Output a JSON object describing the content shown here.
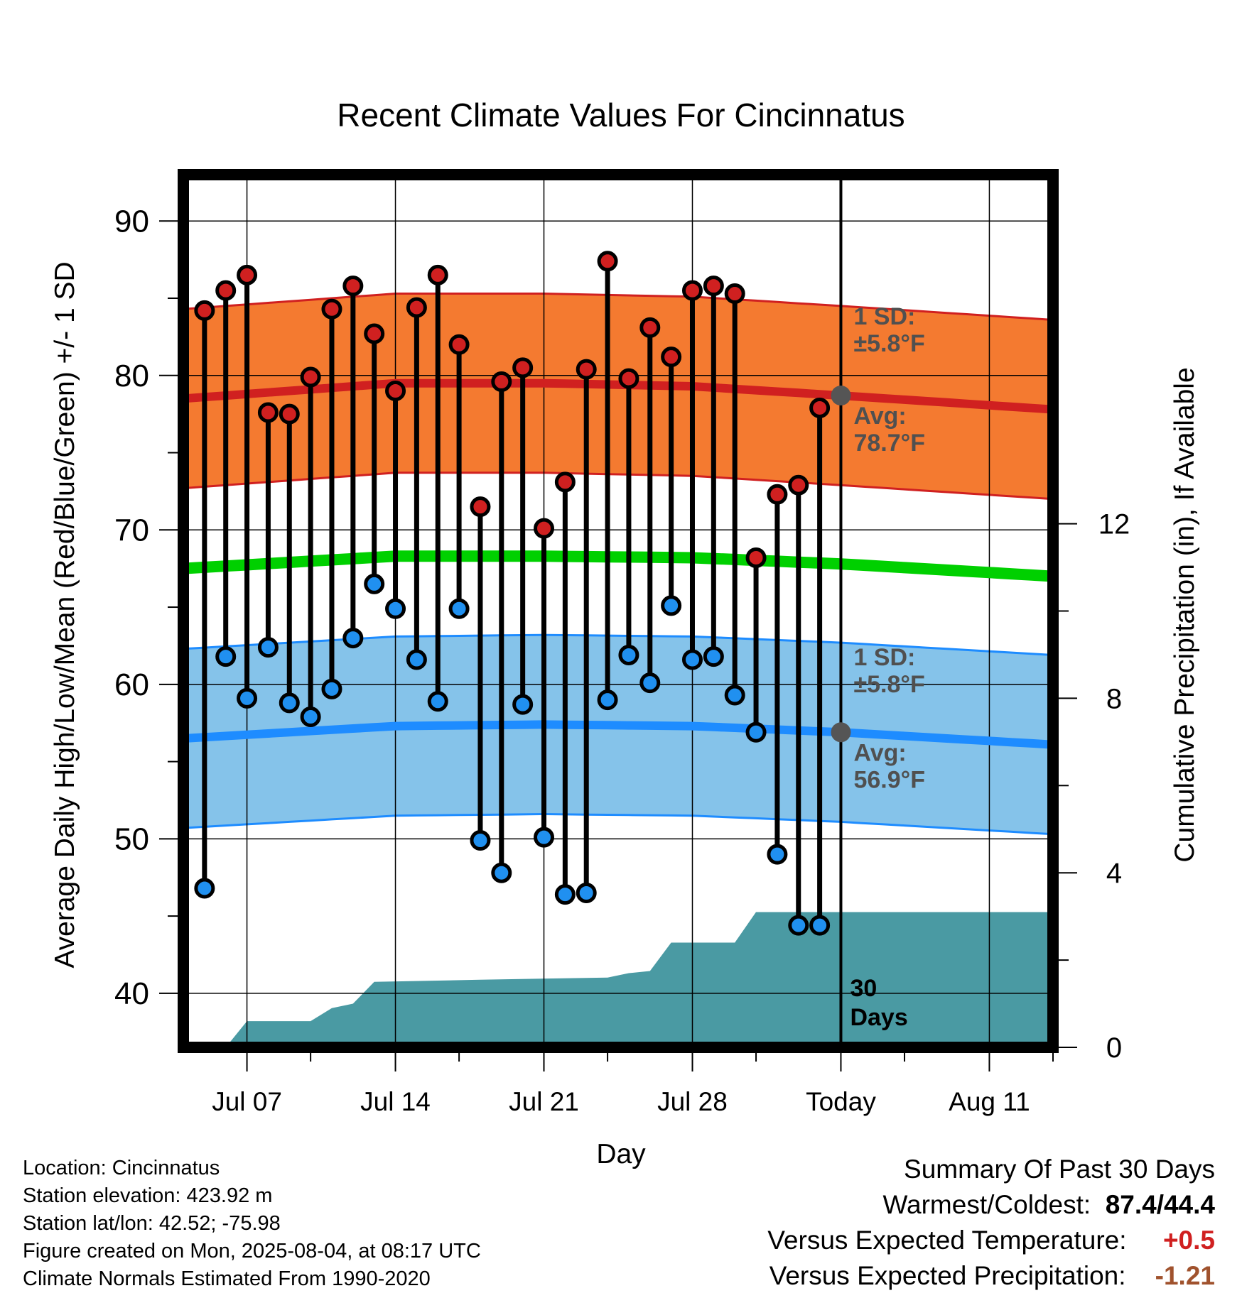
{
  "chart_data": {
    "type": "line",
    "title": "Recent Climate Values For Cincinnatus",
    "xlabel": "Day",
    "ylabel": "Average Daily High/Low/Mean (Red/Blue/Green) +/- 1 SD",
    "y2label": "Cumulative Precipitation (in), If Available",
    "ylim": [
      36.5,
      93
    ],
    "y_ticks": [
      "40",
      "50",
      "60",
      "70",
      "80",
      "90"
    ],
    "y2lim": [
      0,
      20
    ],
    "y2_ticks": [
      "0",
      "4",
      "8",
      "12"
    ],
    "xlim": [
      "2025-07-04",
      "2025-08-14"
    ],
    "x_ticks": [
      {
        "date": "2025-07-07",
        "label": "Jul 07"
      },
      {
        "date": "2025-07-14",
        "label": "Jul 14"
      },
      {
        "date": "2025-07-21",
        "label": "Jul 21"
      },
      {
        "date": "2025-07-28",
        "label": "Jul 28"
      },
      {
        "date": "2025-08-04",
        "label": "Today"
      },
      {
        "date": "2025-08-11",
        "label": "Aug 11"
      }
    ],
    "grid": true,
    "today": "2025-08-04",
    "series": [
      {
        "name": "High",
        "color": "#d02020",
        "dates": [
          "2025-07-05",
          "2025-07-06",
          "2025-07-07",
          "2025-07-08",
          "2025-07-09",
          "2025-07-10",
          "2025-07-11",
          "2025-07-12",
          "2025-07-13",
          "2025-07-14",
          "2025-07-15",
          "2025-07-16",
          "2025-07-17",
          "2025-07-18",
          "2025-07-19",
          "2025-07-20",
          "2025-07-21",
          "2025-07-22",
          "2025-07-23",
          "2025-07-24",
          "2025-07-25",
          "2025-07-26",
          "2025-07-27",
          "2025-07-28",
          "2025-07-29",
          "2025-07-30",
          "2025-07-31",
          "2025-08-01",
          "2025-08-02",
          "2025-08-03"
        ],
        "values": [
          84.2,
          85.5,
          86.5,
          77.6,
          77.5,
          79.9,
          84.3,
          85.8,
          82.7,
          79.0,
          84.4,
          86.5,
          82.0,
          71.5,
          79.6,
          80.5,
          70.1,
          73.1,
          80.4,
          87.4,
          79.8,
          83.1,
          81.2,
          85.5,
          85.8,
          85.3,
          68.2,
          72.3,
          72.9,
          77.9
        ]
      },
      {
        "name": "Low",
        "color": "#2090f0",
        "dates": [
          "2025-07-05",
          "2025-07-06",
          "2025-07-07",
          "2025-07-08",
          "2025-07-09",
          "2025-07-10",
          "2025-07-11",
          "2025-07-12",
          "2025-07-13",
          "2025-07-14",
          "2025-07-15",
          "2025-07-16",
          "2025-07-17",
          "2025-07-18",
          "2025-07-19",
          "2025-07-20",
          "2025-07-21",
          "2025-07-22",
          "2025-07-23",
          "2025-07-24",
          "2025-07-25",
          "2025-07-26",
          "2025-07-27",
          "2025-07-28",
          "2025-07-29",
          "2025-07-30",
          "2025-07-31",
          "2025-08-01",
          "2025-08-02",
          "2025-08-03"
        ],
        "values": [
          46.8,
          61.8,
          59.1,
          62.4,
          58.8,
          57.9,
          59.7,
          63.0,
          66.5,
          64.9,
          61.6,
          58.9,
          64.9,
          49.9,
          47.8,
          58.7,
          50.1,
          46.4,
          46.5,
          59.0,
          61.9,
          60.1,
          65.1,
          61.6,
          61.8,
          59.3,
          56.9,
          49.0,
          44.4,
          44.4
        ]
      },
      {
        "name": "Normal High",
        "color": "#d02020",
        "dates": [
          "2025-07-04",
          "2025-07-14",
          "2025-07-21",
          "2025-07-28",
          "2025-08-04",
          "2025-08-14"
        ],
        "values": [
          78.5,
          79.5,
          79.5,
          79.3,
          78.7,
          77.8
        ],
        "sd": 5.8
      },
      {
        "name": "Normal Low",
        "color": "#1e8cff",
        "dates": [
          "2025-07-04",
          "2025-07-14",
          "2025-07-21",
          "2025-07-28",
          "2025-08-04",
          "2025-08-14"
        ],
        "values": [
          56.5,
          57.3,
          57.4,
          57.3,
          56.9,
          56.1
        ],
        "sd": 5.8
      },
      {
        "name": "Normal Mean",
        "color": "#00d000",
        "dates": [
          "2025-07-04",
          "2025-07-14",
          "2025-07-21",
          "2025-07-28",
          "2025-08-04",
          "2025-08-14"
        ],
        "values": [
          67.5,
          68.3,
          68.3,
          68.2,
          67.8,
          67.0
        ]
      },
      {
        "name": "Cumulative Precipitation",
        "color": "#4a9aa3",
        "dates": [
          "2025-07-06",
          "2025-07-07",
          "2025-07-10",
          "2025-07-11",
          "2025-07-12",
          "2025-07-13",
          "2025-07-18",
          "2025-07-24",
          "2025-07-25",
          "2025-07-26",
          "2025-07-27",
          "2025-07-28",
          "2025-07-30",
          "2025-07-31",
          "2025-08-03",
          "2025-08-04",
          "2025-08-14"
        ],
        "values": [
          0,
          0.6,
          0.6,
          0.9,
          1.0,
          1.5,
          1.55,
          1.6,
          1.7,
          1.75,
          2.4,
          2.4,
          2.4,
          3.1,
          3.1,
          3.1,
          3.1
        ]
      }
    ],
    "annotations": {
      "high_sd": {
        "line1": "1 SD:",
        "line2": "±5.8°F"
      },
      "high_avg": {
        "line1": "Avg:",
        "line2": "78.7°F"
      },
      "low_sd": {
        "line1": "1 SD:",
        "line2": "±5.8°F"
      },
      "low_avg": {
        "line1": "Avg:",
        "line2": "56.9°F"
      },
      "days": {
        "line1": "30",
        "line2": "Days"
      }
    }
  },
  "footer": {
    "location": "Location: Cincinnatus",
    "elevation": "Station elevation: 423.92 m",
    "latlon": "Station lat/lon: 42.52; -75.98",
    "created": "Figure created on Mon, 2025-08-04, at 08:17 UTC",
    "normals": "Climate Normals Estimated From 1990-2020"
  },
  "summary": {
    "title": "Summary Of Past 30 Days",
    "warmest_label": "Warmest/Coldest:",
    "warmest_value": "87.4/44.4",
    "temp_label": "Versus Expected Temperature:",
    "temp_value": "+0.5",
    "temp_color": "#d02020",
    "precip_label": "Versus Expected Precipitation:",
    "precip_value": "-1.21",
    "precip_color": "#a0522d"
  }
}
